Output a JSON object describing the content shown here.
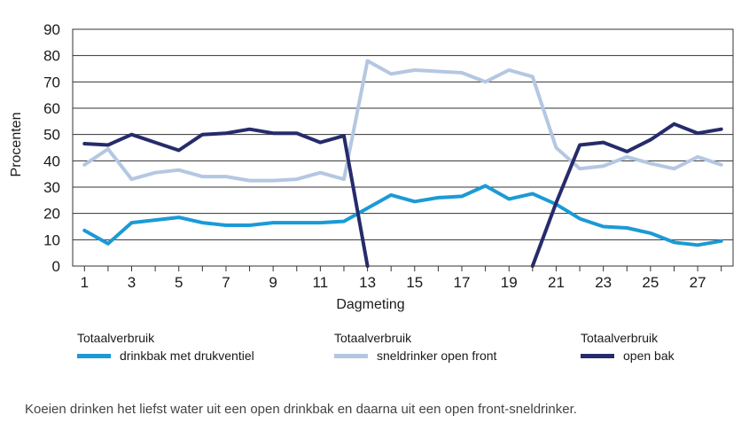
{
  "chart_data": {
    "type": "line",
    "xlabel": "Dagmeting",
    "ylabel": "Procenten",
    "x": [
      1,
      2,
      3,
      4,
      5,
      6,
      7,
      8,
      9,
      10,
      11,
      12,
      13,
      14,
      15,
      16,
      17,
      18,
      19,
      20,
      21,
      22,
      23,
      24,
      25,
      26,
      27,
      28
    ],
    "x_ticks": [
      1,
      3,
      5,
      7,
      9,
      11,
      13,
      15,
      17,
      19,
      21,
      23,
      25,
      27
    ],
    "y_ticks": [
      0,
      10,
      20,
      30,
      40,
      50,
      60,
      70,
      80,
      90
    ],
    "xlim": [
      0.5,
      28.5
    ],
    "ylim": [
      0,
      90
    ],
    "grid": "horizontal",
    "series": [
      {
        "name": "drinkbak met drukventiel",
        "color": "#1b9ad6",
        "values": [
          13.5,
          8.5,
          16.5,
          17.5,
          18.5,
          16.5,
          15.5,
          15.5,
          16.5,
          16.5,
          16.5,
          17,
          22,
          27,
          24.5,
          26,
          26.5,
          30.5,
          25.5,
          27.5,
          23.5,
          18,
          15,
          14.5,
          12.5,
          9,
          8,
          9.5
        ]
      },
      {
        "name": "sneldrinker open front",
        "color": "#b4c7e2",
        "values": [
          38.5,
          44.5,
          33,
          35.5,
          36.5,
          34,
          34,
          32.5,
          32.5,
          33,
          35.5,
          33,
          78,
          73,
          74.5,
          74,
          73.5,
          70,
          74.5,
          72,
          45,
          37,
          38,
          41.5,
          39,
          37,
          41.5,
          38.5
        ]
      },
      {
        "name": "open bak",
        "color": "#262b6b",
        "values": [
          46.5,
          46,
          50,
          47,
          44,
          50,
          50.5,
          52,
          50.5,
          50.5,
          47,
          49.5,
          0,
          null,
          null,
          null,
          null,
          null,
          null,
          0,
          24,
          46,
          47,
          43.5,
          48,
          54,
          50.5,
          52
        ]
      }
    ]
  },
  "legend": {
    "header": "Totaalverbruik",
    "labels": [
      "drinkbak met drukventiel",
      "sneldrinker open front",
      "open bak"
    ]
  },
  "caption": "Koeien drinken het liefst water uit een open drinkbak en daarna uit een open front-sneldrinker."
}
